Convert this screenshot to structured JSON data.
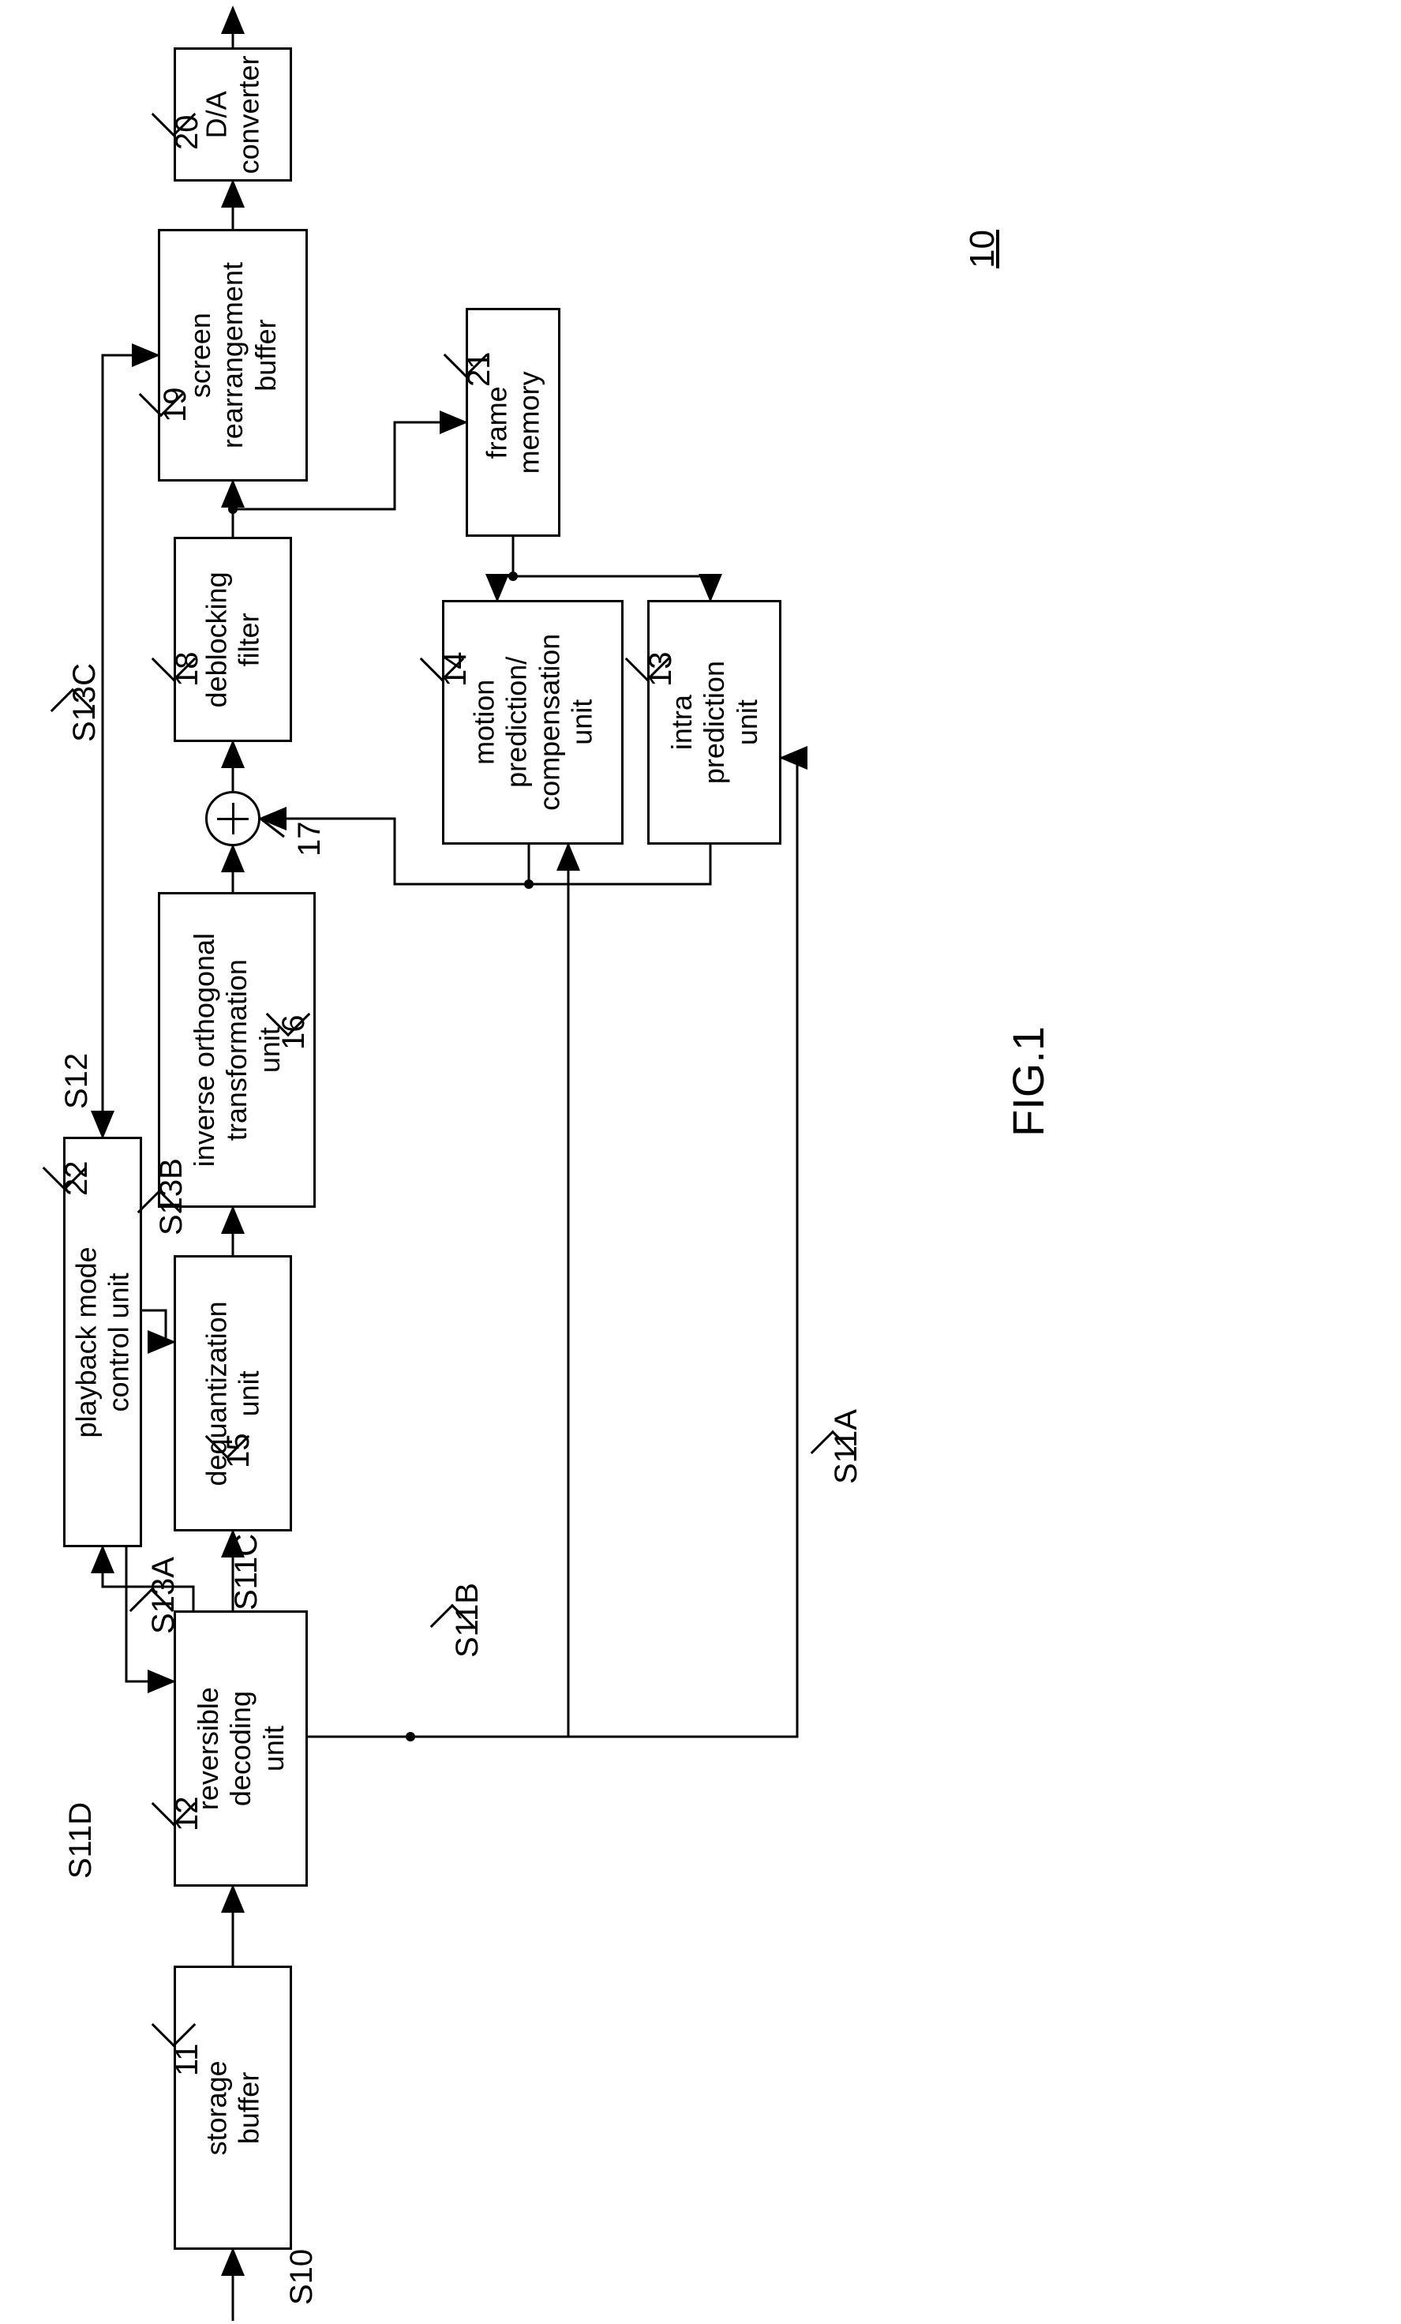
{
  "figure": {
    "caption": "FIG.1",
    "system_ref": "10"
  },
  "blocks": {
    "storage_buffer": {
      "ref": "11",
      "label": "storage\nbuffer"
    },
    "rev_decoding": {
      "ref": "12",
      "label": "reversible\ndecoding\nunit"
    },
    "dequant": {
      "ref": "15",
      "label": "dequantization\nunit"
    },
    "inverse_ortho": {
      "ref": "16",
      "label": "inverse orthogonal\ntransformation\nunit"
    },
    "deblocking": {
      "ref": "18",
      "label": "deblocking\nfilter"
    },
    "screen_rearr": {
      "ref": "19",
      "label": "screen\nrearrangement\nbuffer"
    },
    "da_converter": {
      "ref": "20",
      "label": "D/A\nconverter"
    },
    "frame_memory": {
      "ref": "21",
      "label": "frame\nmemory"
    },
    "motion_pred": {
      "ref": "14",
      "label": "motion\nprediction/\ncompensation\nunit"
    },
    "intra_pred": {
      "ref": "13",
      "label": "intra\nprediction\nunit"
    },
    "playback_ctrl": {
      "ref": "22",
      "label": "playback mode\ncontrol unit"
    },
    "adder": {
      "ref": "17"
    }
  },
  "signals": {
    "s10": "S10",
    "s11a": "S11A",
    "s11b": "S11B",
    "s11c": "S11C",
    "s11d": "S11D",
    "s12": "S12",
    "s13a": "S13A",
    "s13b": "S13B",
    "s13c": "S13C"
  },
  "style": {
    "stroke": "#000000",
    "stroke_width": 3,
    "block_font_size": 36,
    "label_font_size": 40
  }
}
